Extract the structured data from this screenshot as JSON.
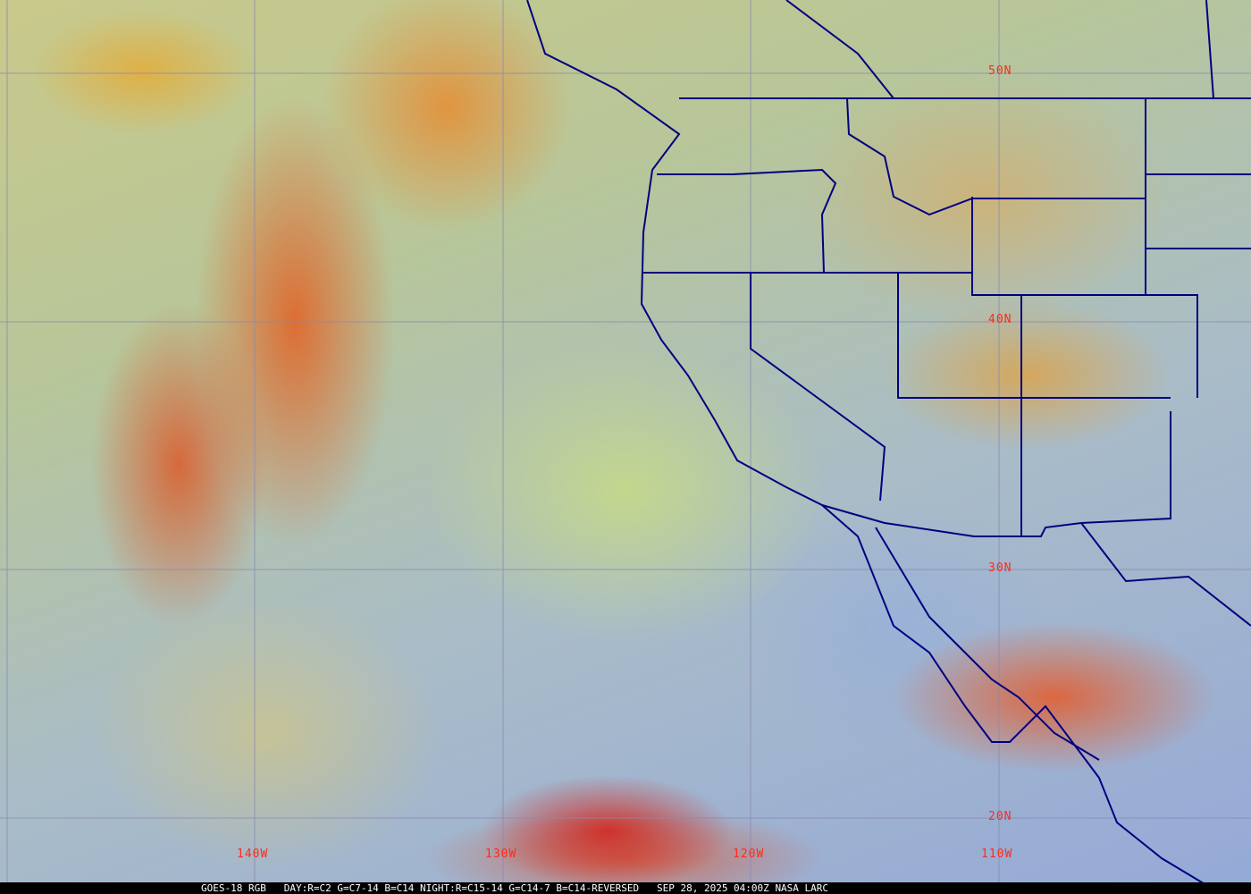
{
  "map": {
    "lat_labels": [
      "50N",
      "40N",
      "30N",
      "20N"
    ],
    "lon_labels": [
      "140W",
      "130W",
      "120W",
      "110W"
    ],
    "grid_color": "#8a8ab0",
    "border_color": "#000080",
    "label_color": "#ff2a1a"
  },
  "footer": {
    "satellite": "GOES-18 RGB",
    "recipe": "DAY:R=C2 G=C7-14 B=C14 NIGHT:R=C15-14 G=C14-7 B=C14-REVERSED",
    "datetime": "SEP 28, 2025 04:00Z",
    "credit": "NASA LARC"
  }
}
